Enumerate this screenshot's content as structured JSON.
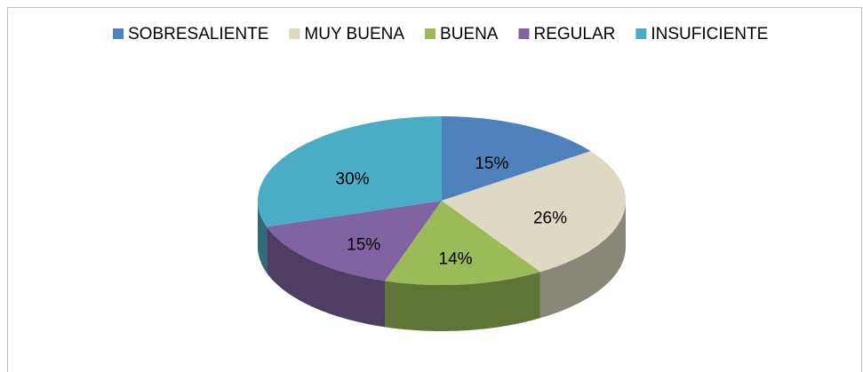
{
  "chart_data": {
    "type": "pie3d",
    "categories": [
      "SOBRESALIENTE",
      "MUY BUENA",
      "BUENA",
      "REGULAR",
      "INSUFICIENTE"
    ],
    "values": [
      15,
      26,
      14,
      15,
      30
    ],
    "value_labels": [
      "15%",
      "26%",
      "14%",
      "15%",
      "30%"
    ],
    "colors": [
      "#4f81bd",
      "#ddd9c3",
      "#9bbb59",
      "#8064a2",
      "#4bacc6"
    ],
    "legend": "top"
  }
}
